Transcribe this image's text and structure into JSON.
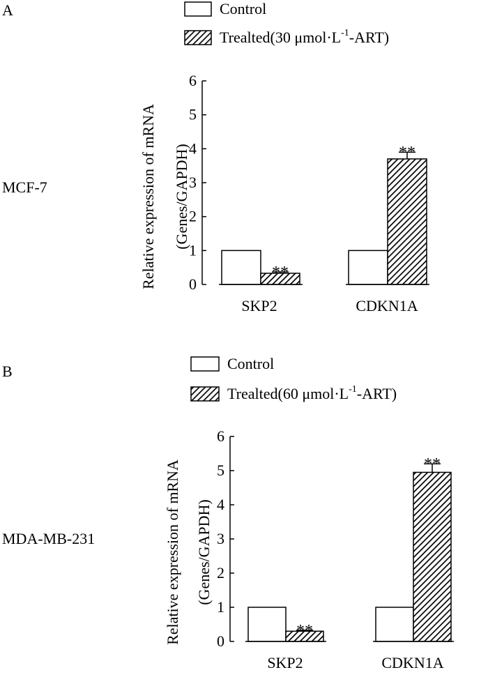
{
  "chart_data": [
    {
      "type": "bar",
      "panel_label": "A",
      "cell_line": "MCF-7",
      "categories": [
        "SKP2",
        "CDKN1A"
      ],
      "series": [
        {
          "name": "Control",
          "values": [
            1.0,
            1.0
          ],
          "errors": [
            0,
            0
          ]
        },
        {
          "name": "Trealted(30 μmol·L",
          "name_sup": "-1",
          "name_end": "-ART)",
          "values": [
            0.33,
            3.7
          ],
          "errors": [
            0.04,
            0.2
          ]
        }
      ],
      "significance": [
        "**",
        "**"
      ],
      "ylabel_line1": "Relative expression of mRNA",
      "ylabel_line2": "(Genes/GAPDH)",
      "ylim": [
        0,
        6
      ],
      "yticks": [
        "0",
        "1",
        "2",
        "3",
        "4",
        "5",
        "6"
      ],
      "legend_placement": "top",
      "grid": false
    },
    {
      "type": "bar",
      "panel_label": "B",
      "cell_line": "MDA-MB-231",
      "categories": [
        "SKP2",
        "CDKN1A"
      ],
      "series": [
        {
          "name": "Control",
          "values": [
            1.0,
            1.0
          ],
          "errors": [
            0,
            0
          ]
        },
        {
          "name": "Trealted(60 μmol·L",
          "name_sup": "-1",
          "name_end": "-ART)",
          "values": [
            0.3,
            4.95
          ],
          "errors": [
            0.03,
            0.25
          ]
        }
      ],
      "significance": [
        "**",
        "**"
      ],
      "ylabel_line1": "Relative expression of mRNA",
      "ylabel_line2": "(Genes/GAPDH)",
      "ylim": [
        0,
        6
      ],
      "yticks": [
        "0",
        "1",
        "2",
        "3",
        "4",
        "5",
        "6"
      ],
      "legend_placement": "top",
      "grid": false
    }
  ]
}
